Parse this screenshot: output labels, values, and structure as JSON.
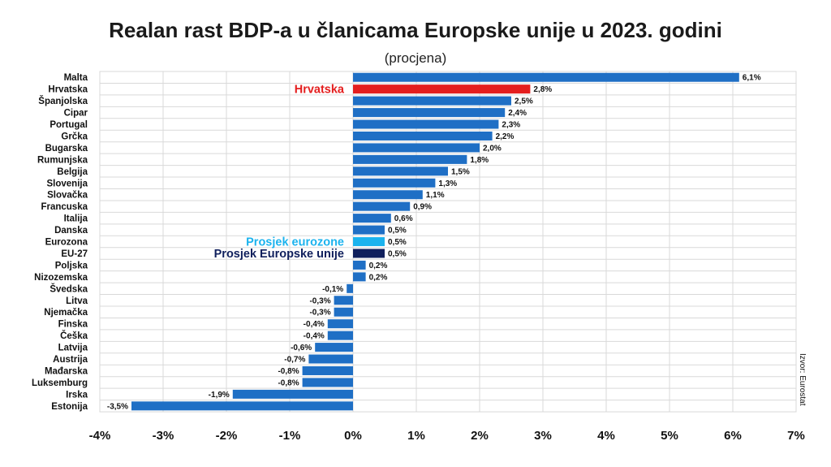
{
  "title": "Realan rast BDP-a u članicama Europske unije u 2023. godini",
  "subtitle": "(procjena)",
  "source": "Izvor: Eurostat",
  "colors": {
    "default_bar": "#1f6fc5",
    "highlight_croatia": "#e41e1e",
    "eurozone": "#1bb3ee",
    "eu27": "#0f1f5c",
    "grid": "#d9d9d9"
  },
  "annotations": [
    {
      "text": "Hrvatska",
      "category": "Hrvatska",
      "color": "#e41e1e"
    },
    {
      "text": "Prosjek eurozone",
      "category": "Eurozona",
      "color": "#1bb3ee"
    },
    {
      "text": "Prosjek Europske unije",
      "category": "EU-27",
      "color": "#0f1f5c"
    }
  ],
  "chart_data": {
    "type": "bar",
    "orientation": "horizontal",
    "title": "Realan rast BDP-a u članicama Europske unije u 2023. godini",
    "subtitle": "(procjena)",
    "xlim": [
      -4,
      7
    ],
    "x_ticks": [
      -4,
      -3,
      -2,
      -1,
      0,
      1,
      2,
      3,
      4,
      5,
      6,
      7
    ],
    "x_tick_labels": [
      "-4%",
      "-3%",
      "-2%",
      "-1%",
      "0%",
      "1%",
      "2%",
      "3%",
      "4%",
      "5%",
      "6%",
      "7%"
    ],
    "grid": true,
    "categories": [
      "Malta",
      "Hrvatska",
      "Španjolska",
      "Cipar",
      "Portugal",
      "Grčka",
      "Bugarska",
      "Rumunjska",
      "Belgija",
      "Slovenija",
      "Slovačka",
      "Francuska",
      "Italija",
      "Danska",
      "Eurozona",
      "EU-27",
      "Poljska",
      "Nizozemska",
      "Švedska",
      "Litva",
      "Njemačka",
      "Finska",
      "Češka",
      "Latvija",
      "Austrija",
      "Mađarska",
      "Luksemburg",
      "Irska",
      "Estonija"
    ],
    "values": [
      6.1,
      2.8,
      2.5,
      2.4,
      2.3,
      2.2,
      2.0,
      1.8,
      1.5,
      1.3,
      1.1,
      0.9,
      0.6,
      0.5,
      0.5,
      0.5,
      0.2,
      0.2,
      -0.1,
      -0.3,
      -0.3,
      -0.4,
      -0.4,
      -0.6,
      -0.7,
      -0.8,
      -0.8,
      -1.9,
      -3.5
    ],
    "value_labels": [
      "6,1%",
      "2,8%",
      "2,5%",
      "2,4%",
      "2,3%",
      "2,2%",
      "2,0%",
      "1,8%",
      "1,5%",
      "1,3%",
      "1,1%",
      "0,9%",
      "0,6%",
      "0,5%",
      "0,5%",
      "0,5%",
      "0,2%",
      "0,2%",
      "-0,1%",
      "-0,3%",
      "-0,3%",
      "-0,4%",
      "-0,4%",
      "-0,6%",
      "-0,7%",
      "-0,8%",
      "-0,8%",
      "-1,9%",
      "-3,5%"
    ],
    "highlight": {
      "Hrvatska": "#e41e1e",
      "Eurozona": "#1bb3ee",
      "EU-27": "#0f1f5c"
    }
  }
}
